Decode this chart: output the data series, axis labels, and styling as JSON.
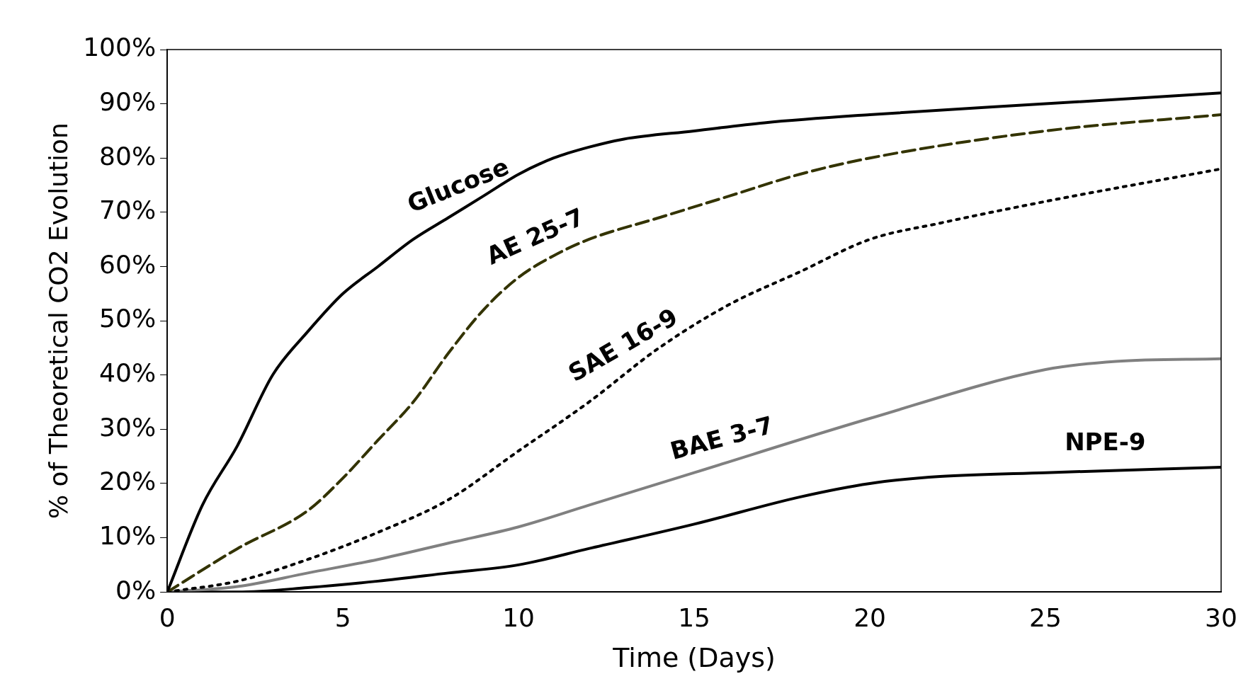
{
  "chart_data": {
    "type": "line",
    "xlabel": "Time (Days)",
    "ylabel": "% of Theoretical CO2 Evolution",
    "xlim": [
      0,
      30
    ],
    "xticks": [
      0,
      5,
      10,
      15,
      20,
      25,
      30
    ],
    "ylim": [
      0,
      100
    ],
    "yticks": [
      {
        "value": 0,
        "label": "0%"
      },
      {
        "value": 10,
        "label": "10%"
      },
      {
        "value": 20,
        "label": "20%"
      },
      {
        "value": 30,
        "label": "30%"
      },
      {
        "value": 40,
        "label": "40%"
      },
      {
        "value": 50,
        "label": "50%"
      },
      {
        "value": 60,
        "label": "60%"
      },
      {
        "value": 70,
        "label": "70%"
      },
      {
        "value": 80,
        "label": "80%"
      },
      {
        "value": 90,
        "label": "90%"
      },
      {
        "value": 100,
        "label": "100%"
      }
    ],
    "grid": false,
    "legend": false,
    "marker": "none",
    "series": [
      {
        "name": "Glucose",
        "color": "#000000",
        "line_style": "solid",
        "x": [
          0,
          1,
          2,
          3,
          4,
          5,
          6,
          7,
          8,
          9,
          10,
          11,
          12,
          13,
          15,
          17,
          20,
          25,
          30
        ],
        "values": [
          0,
          16,
          27,
          40,
          48,
          55,
          60,
          65,
          69,
          73,
          77,
          80,
          82,
          83.5,
          85,
          86.5,
          88,
          90,
          92
        ]
      },
      {
        "name": "AE 25-7",
        "color": "#333300",
        "line_style": "dashed",
        "x": [
          0,
          2,
          4,
          5,
          6,
          7,
          8,
          9,
          10,
          11,
          12,
          14,
          16,
          18,
          20,
          25,
          30
        ],
        "values": [
          0,
          8,
          15,
          21,
          28,
          35,
          44,
          52,
          58,
          62,
          65,
          69,
          73,
          77,
          80,
          85,
          88
        ]
      },
      {
        "name": "SAE 16-9",
        "color": "#000000",
        "line_style": "dotted",
        "x": [
          0,
          2,
          4,
          6,
          8,
          10,
          12,
          14,
          16,
          18,
          20,
          22,
          25,
          30
        ],
        "values": [
          0,
          2,
          6,
          11,
          17,
          26,
          35,
          45,
          53,
          59,
          65,
          68,
          72,
          78
        ]
      },
      {
        "name": "BAE 3-7",
        "color": "#808080",
        "line_style": "solid",
        "x": [
          0,
          2,
          4,
          6,
          8,
          10,
          12,
          15,
          20,
          25,
          27,
          30
        ],
        "values": [
          0,
          1,
          3.5,
          6,
          9,
          12,
          16,
          22,
          32,
          41,
          42.5,
          43
        ]
      },
      {
        "name": "NPE-9",
        "color": "#000000",
        "line_style": "solid",
        "x": [
          0,
          2,
          4,
          6,
          8,
          10,
          12,
          15,
          18,
          20,
          22,
          25,
          30
        ],
        "values": [
          0,
          0,
          0.8,
          2,
          3.5,
          5,
          8,
          12.5,
          17.5,
          20,
          21.3,
          22,
          23
        ]
      }
    ]
  }
}
